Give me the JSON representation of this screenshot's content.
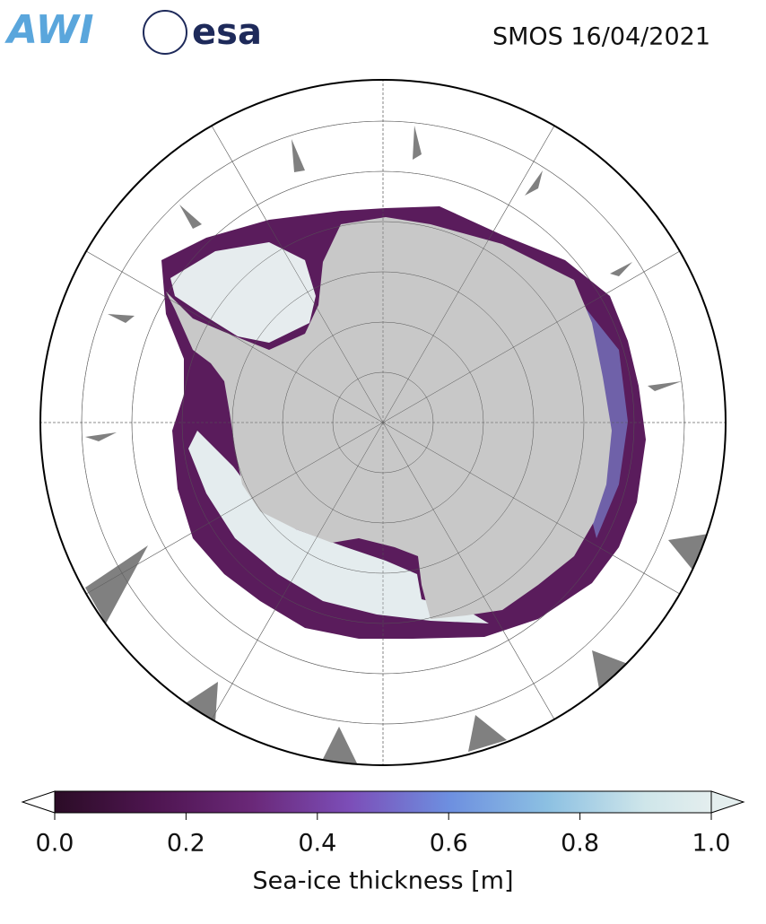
{
  "logos": {
    "awi": "AWI",
    "esa": "esa"
  },
  "chart_data": {
    "type": "map",
    "title": "SMOS 16/04/2021",
    "colorbar": {
      "label": "Sea-ice thickness [m]",
      "clim": [
        0,
        1
      ],
      "ticks": [
        {
          "value": 0,
          "label": "0.0"
        },
        0.2,
        0.4,
        0.6,
        0.8,
        {
          "value": 1,
          "label": "1.0"
        }
      ]
    }
  }
}
